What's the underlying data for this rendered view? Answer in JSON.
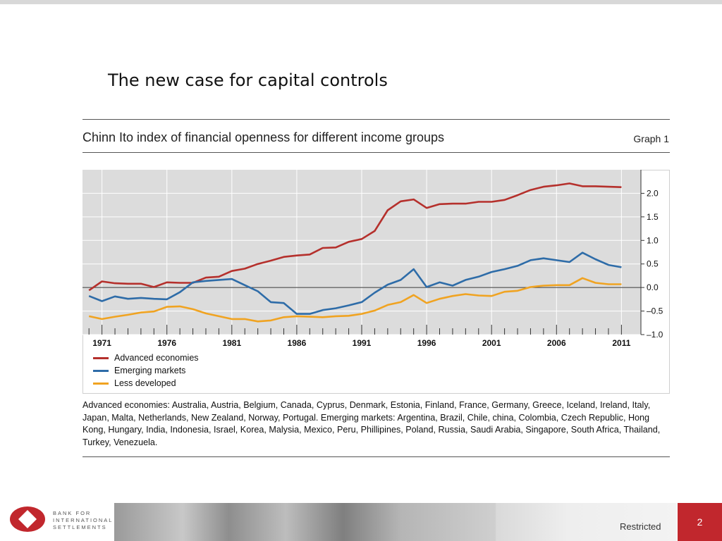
{
  "slide": {
    "title": "The new case for capital controls",
    "restricted_label": "Restricted",
    "page_number": "2",
    "logo_lines": [
      "BANK FOR",
      "INTERNATIONAL",
      "SETTLEMENTS"
    ],
    "accent_color": "#c1272d"
  },
  "graph": {
    "title": "Chinn Ito index of financial openness for different income groups",
    "label": "Graph 1",
    "footnote": "Advanced economies: Australia, Austria, Belgium, Canada, Cyprus, Denmark, Estonia, Finland, France, Germany, Greece, Iceland,  Ireland, Italy, Japan, Malta, Netherlands, New Zealand, Norway, Portugal. Emerging markets: Argentina, Brazil, Chile, china, Colombia, Czech Republic, Hong Kong, Hungary, India, Indonesia, Israel, Korea, Malysia, Mexico, Peru, Phillipines, Poland, Russia, Saudi Arabia, Singapore, South Africa, Thailand, Turkey, Venezuela."
  },
  "chart_data": {
    "type": "line",
    "x": [
      1970,
      1971,
      1972,
      1973,
      1974,
      1975,
      1976,
      1977,
      1978,
      1979,
      1980,
      1981,
      1982,
      1983,
      1984,
      1985,
      1986,
      1987,
      1988,
      1989,
      1990,
      1991,
      1992,
      1993,
      1994,
      1995,
      1996,
      1997,
      1998,
      1999,
      2000,
      2001,
      2002,
      2003,
      2004,
      2005,
      2006,
      2007,
      2008,
      2009,
      2010,
      2011
    ],
    "xlim": [
      1969.5,
      2012.5
    ],
    "ylim": [
      -1.0,
      2.5
    ],
    "yticks": [
      2.0,
      1.5,
      1.0,
      0.5,
      0.0,
      -0.5,
      -1.0
    ],
    "ytick_labels": [
      "2.0",
      "1.5",
      "1.0",
      "0.5",
      "0.0",
      "–0.5",
      "–1.0"
    ],
    "xtick_years": [
      1971,
      1976,
      1981,
      1986,
      1991,
      1996,
      2001,
      2006,
      2011
    ],
    "xtick_labels": [
      "1971",
      "1976",
      "1981",
      "1986",
      "1991",
      "1996",
      "2001",
      "2006",
      "2011"
    ],
    "grid": true,
    "zero_line": true,
    "background": "#dcdcdc",
    "legend_position": "bottom-left",
    "series": [
      {
        "name": "Advanced economies",
        "color": "#b5302c",
        "values": [
          -0.06,
          0.13,
          0.09,
          0.08,
          0.08,
          0.01,
          0.11,
          0.1,
          0.1,
          0.21,
          0.23,
          0.35,
          0.4,
          0.5,
          0.57,
          0.65,
          0.68,
          0.7,
          0.84,
          0.85,
          0.97,
          1.03,
          1.2,
          1.64,
          1.83,
          1.87,
          1.69,
          1.77,
          1.78,
          1.78,
          1.82,
          1.82,
          1.86,
          1.96,
          2.07,
          2.14,
          2.17,
          2.21,
          2.15,
          2.15,
          2.14,
          2.13
        ]
      },
      {
        "name": "Emerging markets",
        "color": "#2e6ca8",
        "values": [
          -0.18,
          -0.29,
          -0.19,
          -0.24,
          -0.22,
          -0.24,
          -0.25,
          -0.1,
          0.11,
          0.14,
          0.16,
          0.18,
          0.05,
          -0.08,
          -0.31,
          -0.33,
          -0.56,
          -0.56,
          -0.48,
          -0.44,
          -0.38,
          -0.31,
          -0.11,
          0.06,
          0.16,
          0.39,
          0.01,
          0.11,
          0.04,
          0.16,
          0.23,
          0.33,
          0.39,
          0.46,
          0.58,
          0.62,
          0.58,
          0.54,
          0.74,
          0.6,
          0.48,
          0.43
        ]
      },
      {
        "name": "Less developed",
        "color": "#f0a321",
        "values": [
          -0.61,
          -0.67,
          -0.62,
          -0.58,
          -0.53,
          -0.51,
          -0.41,
          -0.4,
          -0.46,
          -0.55,
          -0.61,
          -0.67,
          -0.67,
          -0.72,
          -0.7,
          -0.63,
          -0.61,
          -0.62,
          -0.63,
          -0.61,
          -0.6,
          -0.56,
          -0.49,
          -0.37,
          -0.31,
          -0.16,
          -0.33,
          -0.24,
          -0.18,
          -0.14,
          -0.17,
          -0.18,
          -0.09,
          -0.07,
          0.01,
          0.04,
          0.05,
          0.05,
          0.2,
          0.1,
          0.07,
          0.07
        ]
      }
    ]
  }
}
